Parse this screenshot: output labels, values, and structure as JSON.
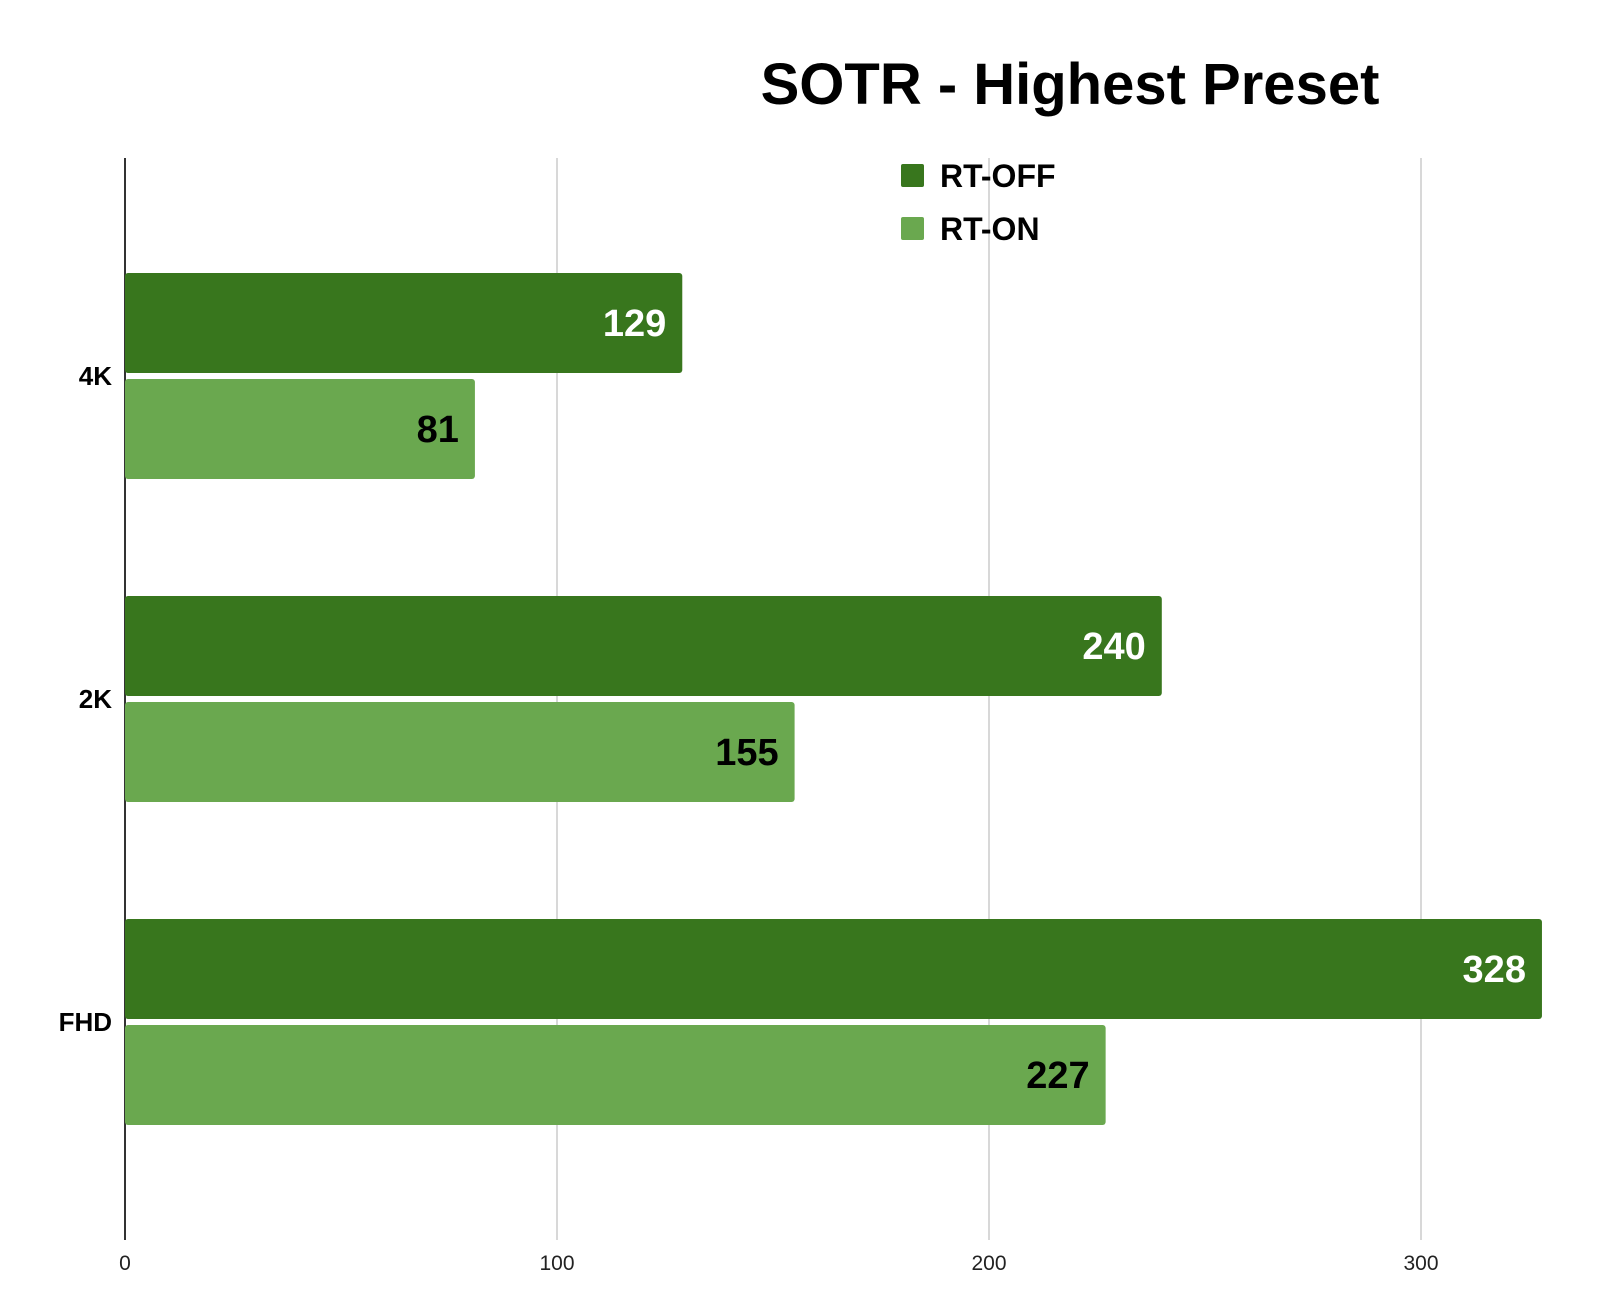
{
  "chart_data": {
    "type": "bar",
    "orientation": "horizontal",
    "title": "SOTR - Highest Preset",
    "xlabel": "",
    "ylabel": "",
    "categories": [
      "4K",
      "2K",
      "FHD"
    ],
    "series": [
      {
        "name": "RT-OFF",
        "color": "#38761d",
        "label_color": "#ffffff",
        "values": [
          129,
          240,
          328
        ]
      },
      {
        "name": "RT-ON",
        "color": "#6aa84f",
        "label_color": "#000000",
        "values": [
          81,
          155,
          227
        ]
      }
    ],
    "xlim": [
      0,
      340
    ],
    "xticks": [
      0,
      100,
      200,
      300
    ],
    "xtick_labels": [
      "0",
      "100",
      "200",
      "300"
    ],
    "grid": true,
    "legend_position": "top-center"
  }
}
